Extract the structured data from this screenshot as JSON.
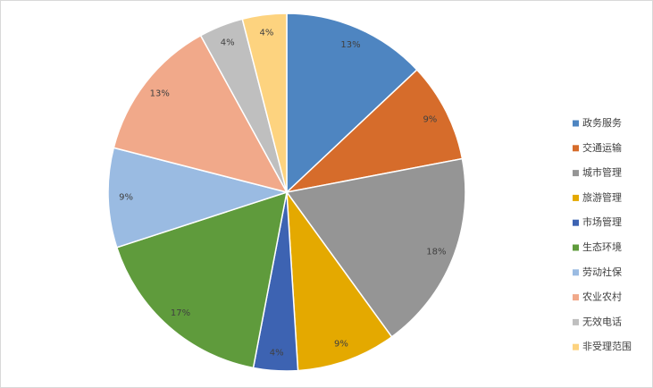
{
  "chart_data": {
    "type": "pie",
    "categories": [
      "政务服务",
      "交通运输",
      "城市管理",
      "旅游管理",
      "市场管理",
      "生态环境",
      "劳动社保",
      "农业农村",
      "无效电话",
      "非受理范围"
    ],
    "values": [
      13,
      9,
      18,
      9,
      4,
      17,
      9,
      13,
      4,
      4
    ],
    "value_labels": [
      "13%",
      "9%",
      "18%",
      "9%",
      "4%",
      "17%",
      "9%",
      "13%",
      "4%",
      "4%"
    ],
    "colors": [
      "#4e85c1",
      "#d66c2b",
      "#959595",
      "#e4a900",
      "#3d63b2",
      "#5f9b3c",
      "#9abbe2",
      "#f1a98a",
      "#bfbfbf",
      "#fdd37f"
    ],
    "legend": "right"
  }
}
